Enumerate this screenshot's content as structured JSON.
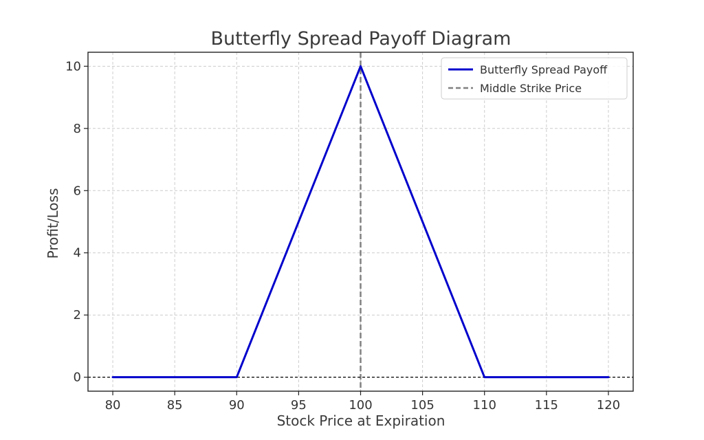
{
  "chart_data": {
    "type": "line",
    "title": "Butterfly Spread Payoff Diagram",
    "xlabel": "Stock Price at Expiration",
    "ylabel": "Profit/Loss",
    "xlim": [
      78,
      122
    ],
    "ylim": [
      -0.45,
      10.45
    ],
    "xticks": [
      80,
      85,
      90,
      95,
      100,
      105,
      110,
      115,
      120
    ],
    "yticks": [
      0,
      2,
      4,
      6,
      8,
      10
    ],
    "grid": true,
    "legend_position": "top-right",
    "series": [
      {
        "name": "Butterfly Spread Payoff",
        "color": "#0000cc",
        "style": "solid",
        "x": [
          80,
          90,
          100,
          110,
          120
        ],
        "y": [
          0,
          0,
          10,
          0,
          0
        ]
      }
    ],
    "reference_lines": [
      {
        "name": "Middle Strike Price",
        "orientation": "vertical",
        "value": 100,
        "color": "#808080",
        "style": "dashed"
      },
      {
        "name": "",
        "orientation": "horizontal",
        "value": 0,
        "color": "#000000",
        "style": "dashed"
      }
    ]
  }
}
